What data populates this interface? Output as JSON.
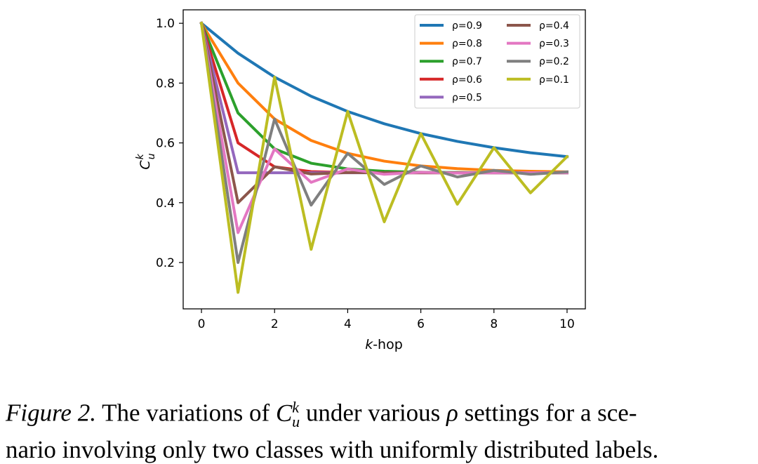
{
  "chart_data": {
    "type": "line",
    "x": [
      0,
      1,
      2,
      3,
      4,
      5,
      6,
      7,
      8,
      9,
      10
    ],
    "xlabel_italic": "k",
    "xlabel_rest": "-hop",
    "ylabel_main": "C",
    "ylabel_sup": "k",
    "ylabel_sub": "u",
    "xlim": [
      -0.5,
      10.5
    ],
    "ylim": [
      0.045,
      1.045
    ],
    "xticks": [
      0,
      2,
      4,
      6,
      8,
      10
    ],
    "xtick_labels": [
      "0",
      "2",
      "4",
      "6",
      "8",
      "10"
    ],
    "yticks": [
      0.2,
      0.4,
      0.6,
      0.8,
      1.0
    ],
    "ytick_labels": [
      "0.2",
      "0.4",
      "0.6",
      "0.8",
      "1.0"
    ],
    "legend_position": "top-right",
    "series": [
      {
        "name": "ρ=0.9",
        "color": "#1f77b4",
        "values": [
          1.0,
          0.9,
          0.82,
          0.756,
          0.705,
          0.664,
          0.631,
          0.605,
          0.584,
          0.567,
          0.554
        ]
      },
      {
        "name": "ρ=0.8",
        "color": "#ff7f0e",
        "values": [
          1.0,
          0.8,
          0.68,
          0.608,
          0.565,
          0.539,
          0.523,
          0.514,
          0.508,
          0.505,
          0.503
        ]
      },
      {
        "name": "ρ=0.7",
        "color": "#2ca02c",
        "values": [
          1.0,
          0.7,
          0.58,
          0.532,
          0.513,
          0.505,
          0.502,
          0.501,
          0.5,
          0.5,
          0.5
        ]
      },
      {
        "name": "ρ=0.6",
        "color": "#d62728",
        "values": [
          1.0,
          0.6,
          0.52,
          0.504,
          0.501,
          0.5,
          0.5,
          0.5,
          0.5,
          0.5,
          0.5
        ]
      },
      {
        "name": "ρ=0.5",
        "color": "#9467bd",
        "values": [
          1.0,
          0.5,
          0.5,
          0.5,
          0.5,
          0.5,
          0.5,
          0.5,
          0.5,
          0.5,
          0.5
        ]
      },
      {
        "name": "ρ=0.4",
        "color": "#8c564b",
        "values": [
          1.0,
          0.4,
          0.52,
          0.496,
          0.501,
          0.5,
          0.5,
          0.5,
          0.5,
          0.5,
          0.5
        ]
      },
      {
        "name": "ρ=0.3",
        "color": "#e377c2",
        "values": [
          1.0,
          0.3,
          0.58,
          0.468,
          0.513,
          0.495,
          0.502,
          0.499,
          0.5,
          0.5,
          0.5
        ]
      },
      {
        "name": "ρ=0.2",
        "color": "#7f7f7f",
        "values": [
          1.0,
          0.2,
          0.68,
          0.392,
          0.565,
          0.461,
          0.523,
          0.486,
          0.508,
          0.495,
          0.503
        ]
      },
      {
        "name": "ρ=0.1",
        "color": "#bcbd22",
        "values": [
          1.0,
          0.1,
          0.82,
          0.244,
          0.705,
          0.336,
          0.631,
          0.395,
          0.584,
          0.433,
          0.554
        ]
      }
    ]
  },
  "caption": {
    "figure_label": "Figure 2.",
    "text_1": "The variations of",
    "symbol_main": "C",
    "symbol_sup": "k",
    "symbol_sub": "u",
    "text_2": "under various",
    "rho": "ρ",
    "text_3": "settings for a sce-",
    "line_2": "nario involving only two classes with uniformly distributed labels."
  }
}
